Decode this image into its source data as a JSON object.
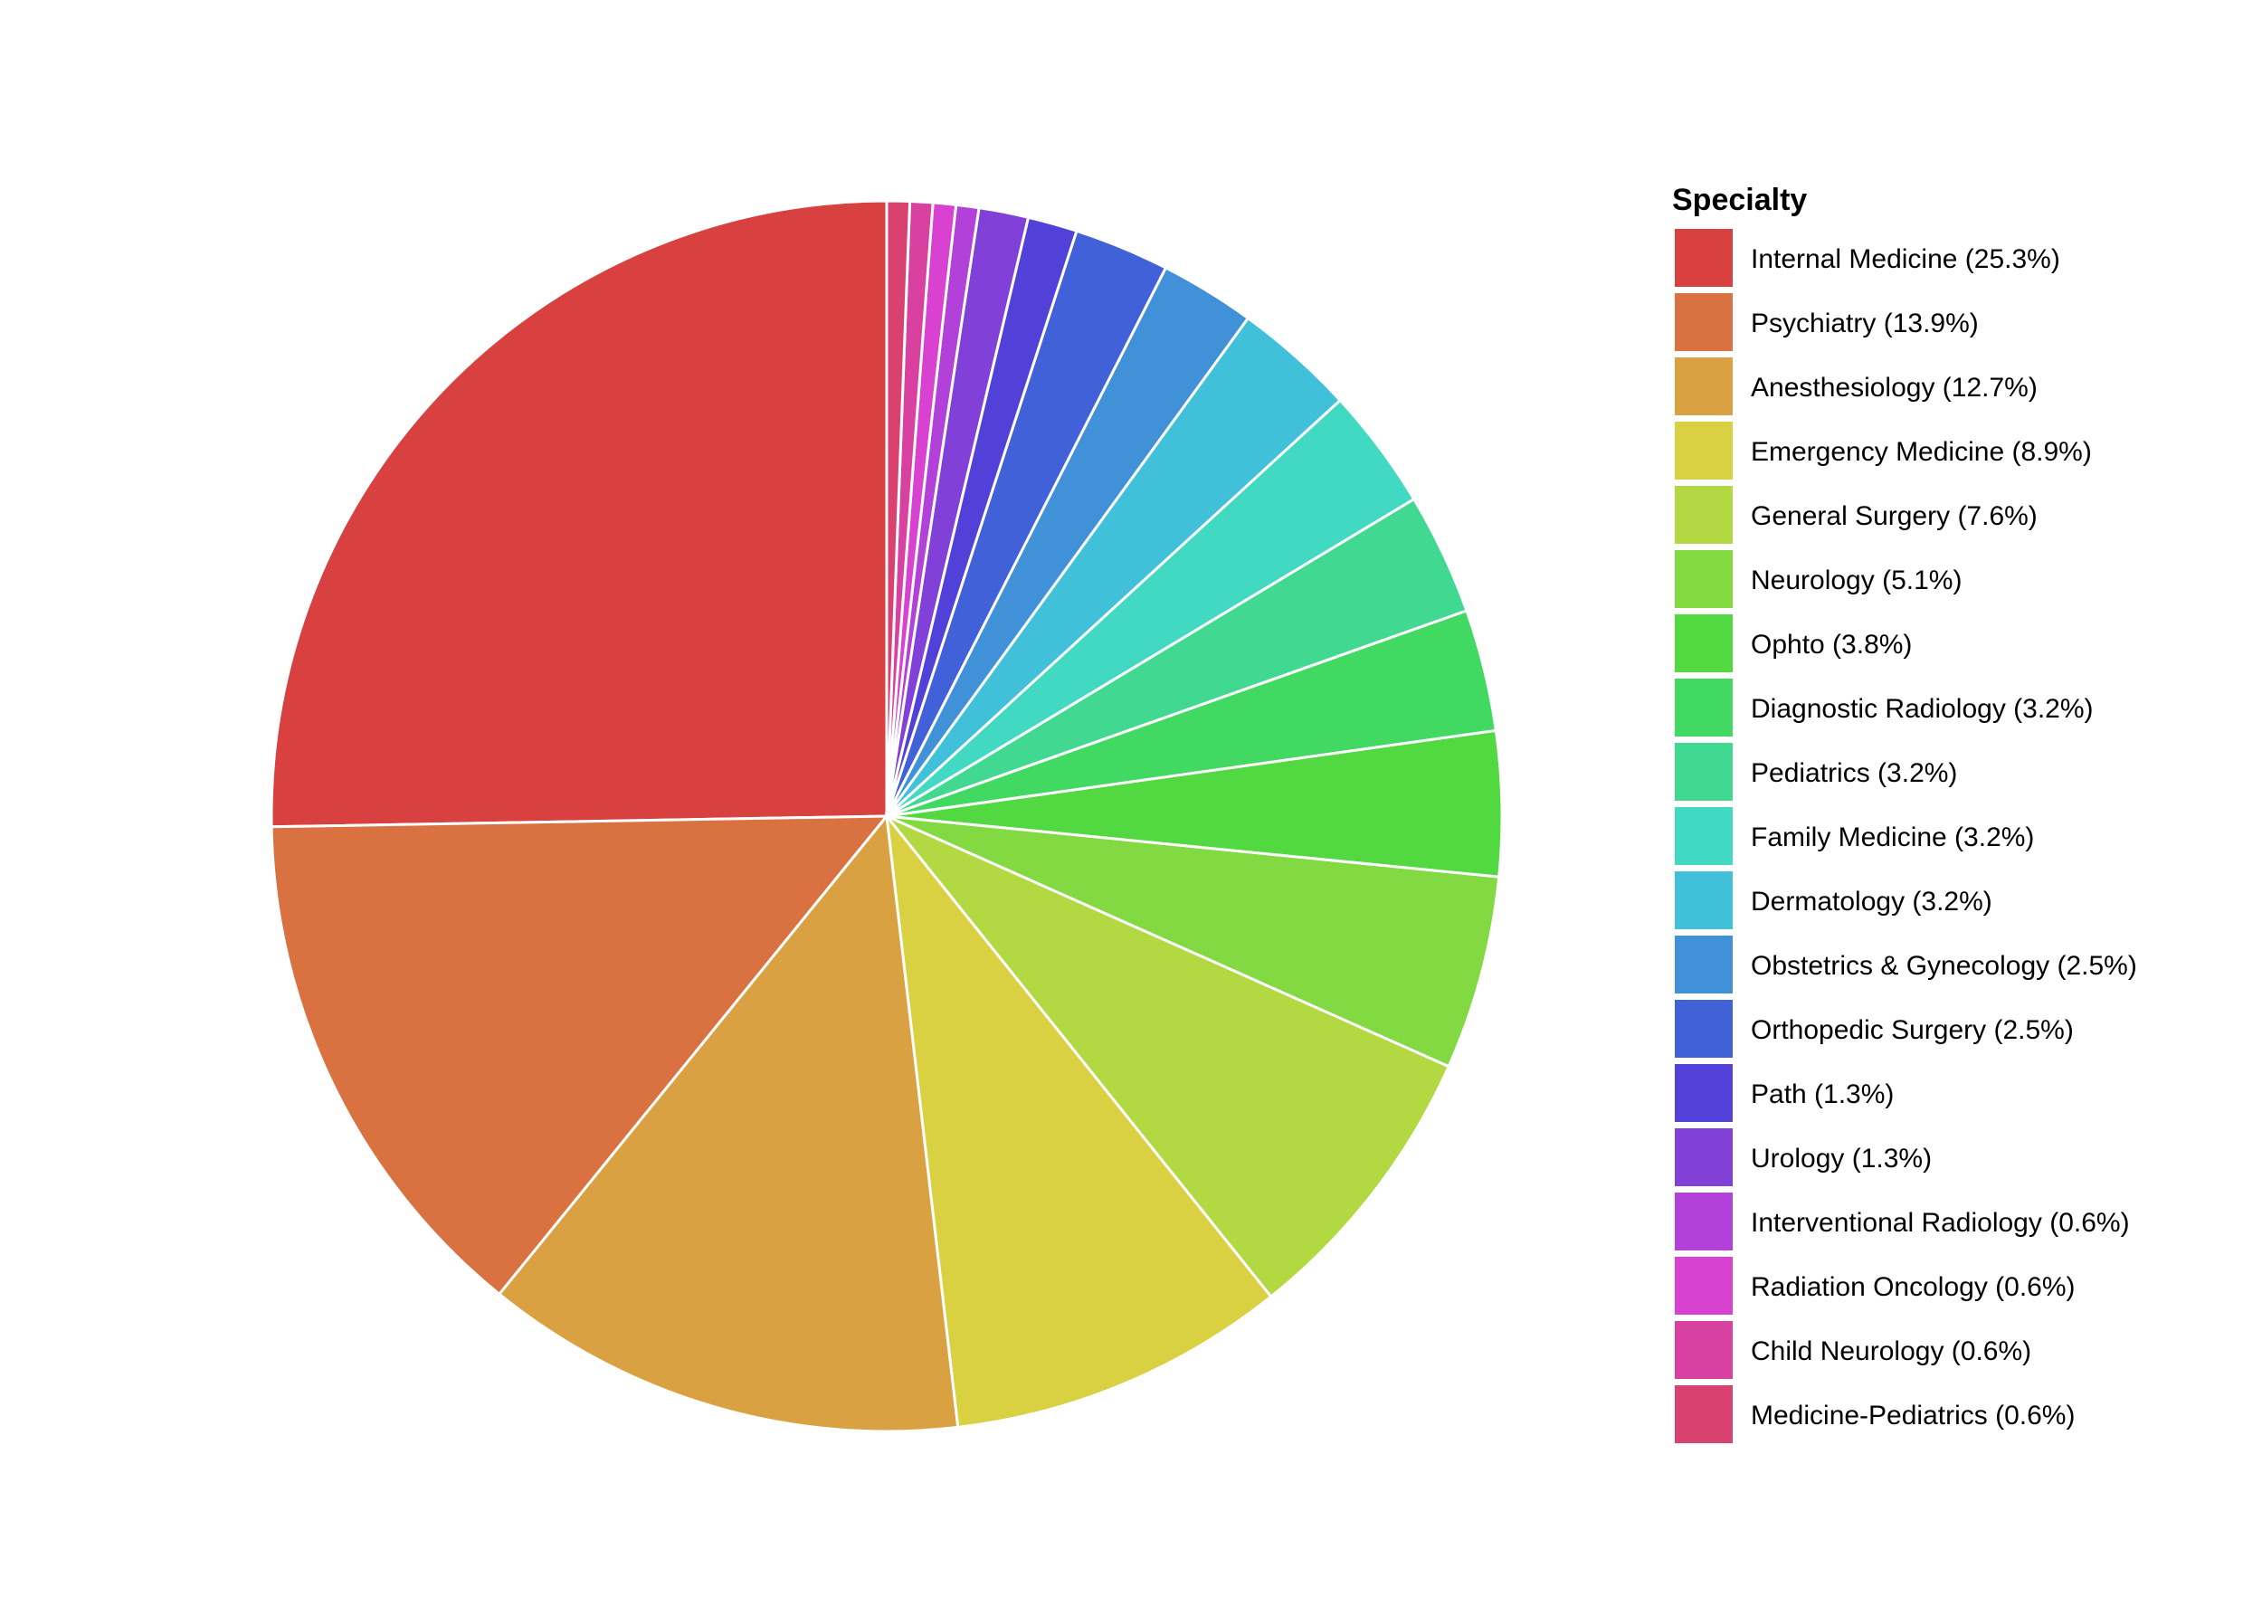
{
  "chart_data": {
    "type": "pie",
    "legend_title": "Specialty",
    "legend_position": "right",
    "start_angle": "12 o'clock",
    "direction": "counterclockwise",
    "slices": [
      {
        "label": "Internal Medicine (25.3%)",
        "value": 25.3,
        "color": "#d94141"
      },
      {
        "label": "Psychiatry (13.9%)",
        "value": 13.9,
        "color": "#d97141"
      },
      {
        "label": "Anesthesiology (12.7%)",
        "value": 12.7,
        "color": "#d9a141"
      },
      {
        "label": "Emergency Medicine (8.9%)",
        "value": 8.9,
        "color": "#d9d141"
      },
      {
        "label": "General Surgery (7.6%)",
        "value": 7.6,
        "color": "#b2d941"
      },
      {
        "label": "Neurology (5.1%)",
        "value": 5.1,
        "color": "#82d941"
      },
      {
        "label": "Ophto (3.8%)",
        "value": 3.8,
        "color": "#52d941"
      },
      {
        "label": "Diagnostic Radiology (3.2%)",
        "value": 3.2,
        "color": "#41d962"
      },
      {
        "label": "Pediatrics (3.2%)",
        "value": 3.2,
        "color": "#41d992"
      },
      {
        "label": "Family Medicine (3.2%)",
        "value": 3.2,
        "color": "#41d9c2"
      },
      {
        "label": "Dermatology (3.2%)",
        "value": 3.2,
        "color": "#41c1d9"
      },
      {
        "label": "Obstetrics & Gynecology (2.5%)",
        "value": 2.5,
        "color": "#4191d9"
      },
      {
        "label": "Orthopedic Surgery (2.5%)",
        "value": 2.5,
        "color": "#4161d9"
      },
      {
        "label": "Path (1.3%)",
        "value": 1.3,
        "color": "#5141d9"
      },
      {
        "label": "Urology (1.3%)",
        "value": 1.3,
        "color": "#8141d9"
      },
      {
        "label": "Interventional Radiology (0.6%)",
        "value": 0.6,
        "color": "#b141d9"
      },
      {
        "label": "Radiation Oncology (0.6%)",
        "value": 0.6,
        "color": "#d941d1"
      },
      {
        "label": "Child Neurology (0.6%)",
        "value": 0.6,
        "color": "#d941a1"
      },
      {
        "label": "Medicine-Pediatrics (0.6%)",
        "value": 0.6,
        "color": "#d94171"
      }
    ]
  }
}
